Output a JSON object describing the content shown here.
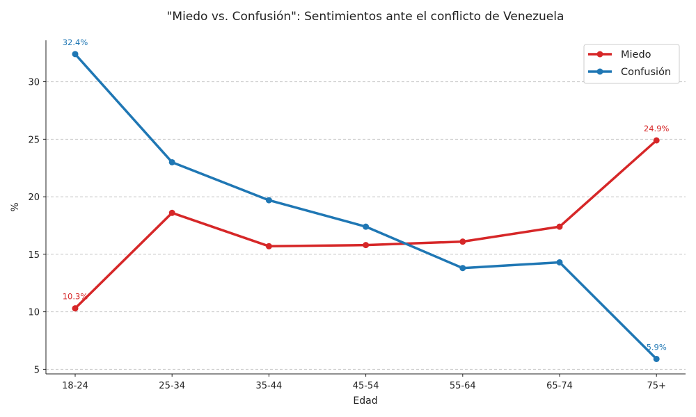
{
  "chart_data": {
    "type": "line",
    "title": "\"Miedo vs. Confusión\": Sentimientos ante el conflicto de Venezuela",
    "xlabel": "Edad",
    "ylabel": "%",
    "categories": [
      "18-24",
      "25-34",
      "35-44",
      "45-54",
      "55-64",
      "65-74",
      "75+"
    ],
    "ylim": [
      4.6,
      33.6
    ],
    "yticks": [
      5,
      10,
      15,
      20,
      25,
      30
    ],
    "grid": "horizontal-dashed",
    "legend_position": "top-right",
    "series": [
      {
        "name": "Miedo",
        "color": "#d62728",
        "values": [
          10.3,
          18.6,
          15.7,
          15.8,
          16.1,
          17.4,
          24.9
        ]
      },
      {
        "name": "Confusión",
        "color": "#1f77b4",
        "values": [
          32.4,
          23.0,
          19.7,
          17.4,
          13.8,
          14.3,
          5.9
        ]
      }
    ],
    "annotations": [
      {
        "series": "Miedo",
        "category": "18-24",
        "text": "10.3%"
      },
      {
        "series": "Miedo",
        "category": "75+",
        "text": "24.9%"
      },
      {
        "series": "Confusión",
        "category": "18-24",
        "text": "32.4%"
      },
      {
        "series": "Confusión",
        "category": "75+",
        "text": "5.9%"
      }
    ]
  }
}
